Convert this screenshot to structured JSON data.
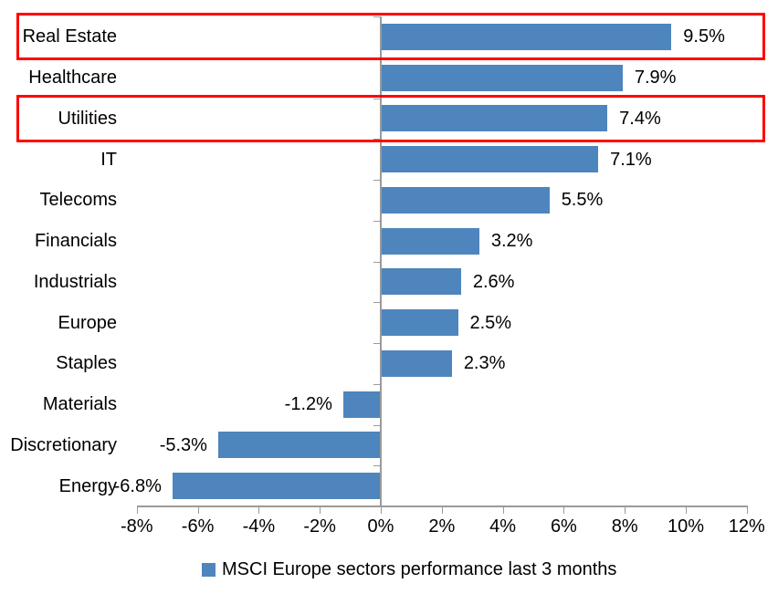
{
  "chart_data": {
    "type": "bar",
    "orientation": "horizontal",
    "title": "",
    "legend": "MSCI Europe sectors performance last 3 months",
    "legend_position": "bottom",
    "grid": false,
    "categories": [
      "Real Estate",
      "Healthcare",
      "Utilities",
      "IT",
      "Telecoms",
      "Financials",
      "Industrials",
      "Europe",
      "Staples",
      "Materials",
      "Discretionary",
      "Energy"
    ],
    "values": [
      9.5,
      7.9,
      7.4,
      7.1,
      5.5,
      3.2,
      2.6,
      2.5,
      2.3,
      -1.2,
      -5.3,
      -6.8
    ],
    "value_labels": [
      "9.5%",
      "7.9%",
      "7.4%",
      "7.1%",
      "5.5%",
      "3.2%",
      "2.6%",
      "2.5%",
      "2.3%",
      "-1.2%",
      "-5.3%",
      "-6.8%"
    ],
    "xlim": [
      -8,
      12
    ],
    "x_tick_values": [
      -8,
      -6,
      -4,
      -2,
      0,
      2,
      4,
      6,
      8,
      10,
      12
    ],
    "x_ticks": [
      "-8%",
      "-6%",
      "-4%",
      "-2%",
      "0%",
      "2%",
      "4%",
      "6%",
      "8%",
      "10%",
      "12%"
    ],
    "highlighted_categories": [
      "Real Estate",
      "Utilities"
    ],
    "colors": {
      "bar": "#4E85BD",
      "highlight_box": "#FF0000",
      "axis": "#9A9A9A",
      "text": "#000000"
    }
  }
}
